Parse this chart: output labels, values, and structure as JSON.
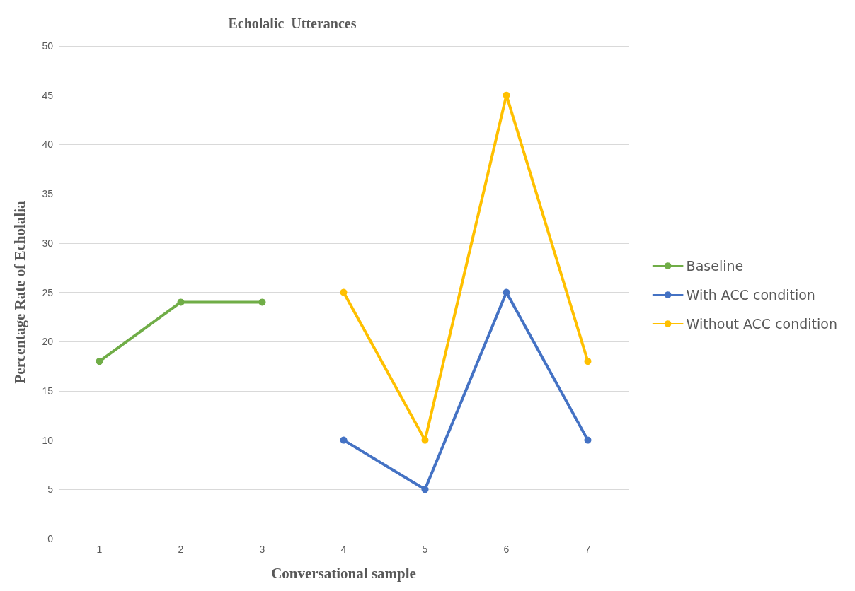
{
  "chart_data": {
    "type": "line",
    "title": "Echolalic  Utterances",
    "xlabel": "Conversational sample",
    "ylabel": "Percentage Rate of Echolalia",
    "categories": [
      "1",
      "2",
      "3",
      "4",
      "5",
      "6",
      "7"
    ],
    "series": [
      {
        "name": "Baseline",
        "color": "#70ad47",
        "values": [
          18,
          24,
          24,
          null,
          null,
          null,
          null
        ]
      },
      {
        "name": "With ACC condition",
        "color": "#4472c4",
        "values": [
          null,
          null,
          null,
          10,
          5,
          25,
          10
        ]
      },
      {
        "name": "Without ACC condition",
        "color": "#ffc000",
        "values": [
          null,
          null,
          null,
          25,
          10,
          45,
          18
        ]
      }
    ],
    "ylim": [
      0,
      50
    ],
    "yticks": [
      0,
      5,
      10,
      15,
      20,
      25,
      30,
      35,
      40,
      45,
      50
    ],
    "grid": "y",
    "legend": "right",
    "marker": "circle",
    "line_style": "solid"
  }
}
